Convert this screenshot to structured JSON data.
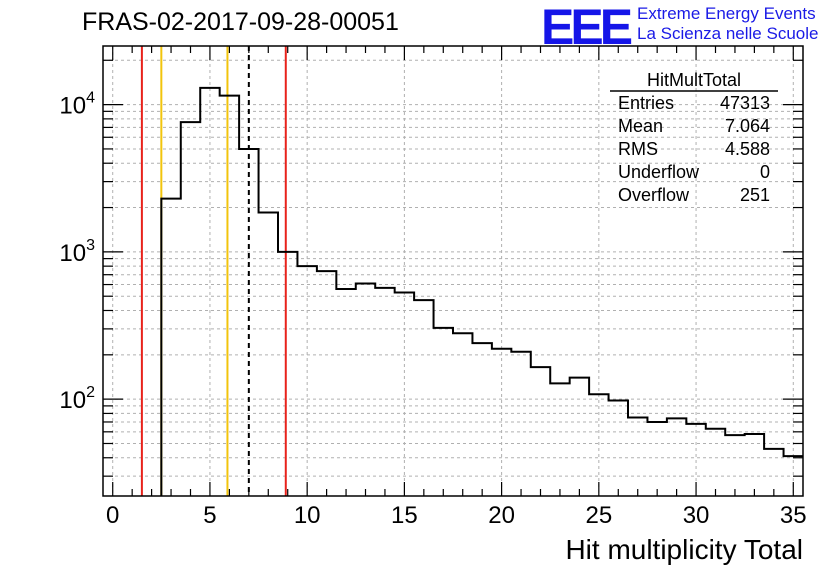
{
  "header": {
    "title": "FRAS-02-2017-09-28-00051",
    "logo_text": "EEE",
    "logo_line1": "Extreme Energy Events",
    "logo_line2": "La Scienza nelle Scuole",
    "logo_color": "#1515e8"
  },
  "stats": {
    "title": "HitMultTotal",
    "rows": [
      {
        "label": "Entries",
        "value": "47313"
      },
      {
        "label": "Mean",
        "value": "7.064"
      },
      {
        "label": "RMS",
        "value": "4.588"
      },
      {
        "label": "Underflow",
        "value": "0"
      },
      {
        "label": "Overflow",
        "value": "251"
      }
    ]
  },
  "chart_data": {
    "type": "histogram",
    "xlabel": "Hit multiplicity Total",
    "ylabel": "",
    "xlim": [
      -0.5,
      35.5
    ],
    "ylim": [
      22,
      25000
    ],
    "y_scale": "log",
    "grid": true,
    "bin_edges_start": 2.5,
    "bin_width": 1,
    "counts": [
      2300,
      7600,
      13000,
      11500,
      5000,
      1850,
      1000,
      800,
      740,
      560,
      610,
      570,
      530,
      470,
      305,
      280,
      240,
      220,
      210,
      165,
      128,
      140,
      108,
      98,
      75,
      70,
      74,
      68,
      63,
      57,
      58,
      46,
      41
    ],
    "x_ticks": [
      0,
      5,
      10,
      15,
      20,
      25,
      30,
      35
    ],
    "y_ticks": [
      {
        "base": "10",
        "exp": "2",
        "value": 100
      },
      {
        "base": "10",
        "exp": "3",
        "value": 1000
      },
      {
        "base": "10",
        "exp": "4",
        "value": 10000
      }
    ],
    "vlines": [
      {
        "x": 1.5,
        "color": "#e8221b",
        "style": "solid"
      },
      {
        "x": 2.5,
        "color": "#f2c40c",
        "style": "solid"
      },
      {
        "x": 5.9,
        "color": "#f2c40c",
        "style": "solid"
      },
      {
        "x": 7.0,
        "color": "#000000",
        "style": "dashed"
      },
      {
        "x": 8.9,
        "color": "#e8221b",
        "style": "solid"
      }
    ]
  }
}
